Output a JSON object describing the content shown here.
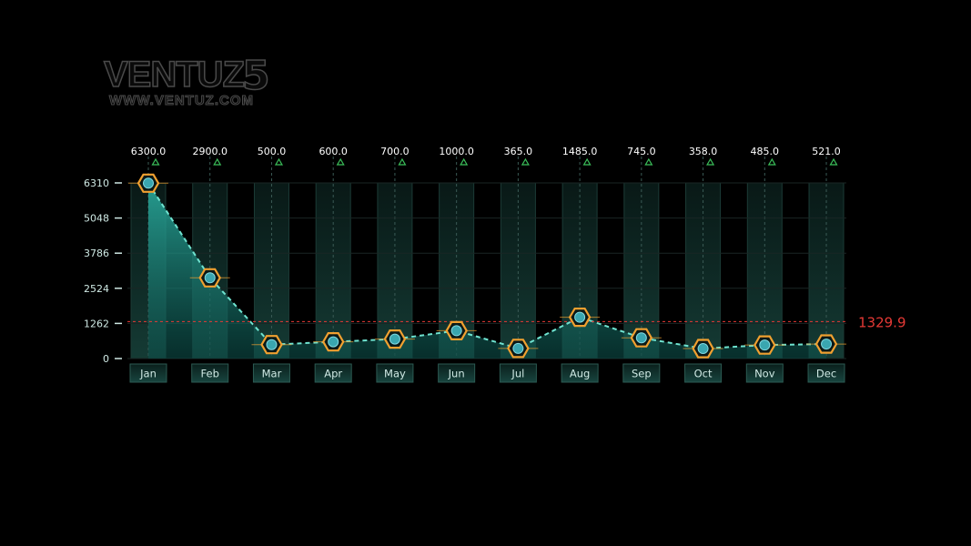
{
  "logo": {
    "brand": "VENTUZ",
    "url": "WWW.VENTUZ.COM",
    "mark": "5"
  },
  "chart_data": {
    "type": "area",
    "categories": [
      "Jan",
      "Feb",
      "Mar",
      "Apr",
      "May",
      "Jun",
      "Jul",
      "Aug",
      "Sep",
      "Oct",
      "Nov",
      "Dec"
    ],
    "values": [
      6300,
      2900,
      500,
      600,
      700,
      1000,
      365,
      1485,
      745,
      358,
      485,
      521
    ],
    "value_labels": [
      "6300.0",
      "2900.0",
      "500.0",
      "600.0",
      "700.0",
      "1000.0",
      "365.0",
      "1485.0",
      "745.0",
      "358.0",
      "485.0",
      "521.0"
    ],
    "yticks": [
      0,
      1262,
      2524,
      3786,
      5048,
      6310
    ],
    "ylim": [
      0,
      6310
    ],
    "average": {
      "value": 1329.9,
      "label": "1329.9",
      "color": "#e53935"
    },
    "grid": true,
    "colors": {
      "line": "#6fe3d0",
      "area": "#1f9e95",
      "marker": "#f0a030",
      "axis_text": "#cfe9e4",
      "value_text": "#ffffff",
      "triangle": "#3bbf5a"
    }
  }
}
